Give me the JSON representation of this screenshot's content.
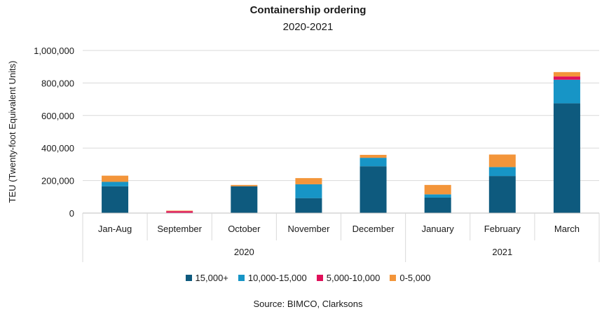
{
  "chart_data": {
    "type": "bar",
    "stacked": true,
    "title": "Containership ordering",
    "subtitle": "2020-2021",
    "ylabel": "TEU (Twenty-foot Equivalent Units)",
    "xlabel": "",
    "ylim": [
      0,
      1000000
    ],
    "yticks": [
      0,
      200000,
      400000,
      600000,
      800000,
      1000000
    ],
    "ytick_labels": [
      "0",
      "200,000",
      "400,000",
      "600,000",
      "800,000",
      "1,000,000"
    ],
    "categories": [
      "Jan-Aug",
      "September",
      "October",
      "November",
      "December",
      "January",
      "February",
      "March"
    ],
    "groups": [
      {
        "label": "2020",
        "categories": [
          "Jan-Aug",
          "September",
          "October",
          "November",
          "December"
        ]
      },
      {
        "label": "2021",
        "categories": [
          "January",
          "February",
          "March"
        ]
      }
    ],
    "series": [
      {
        "name": "15,000+",
        "color": "#0e5a7e",
        "values": [
          165000,
          0,
          165000,
          92000,
          288000,
          95000,
          228000,
          675000
        ]
      },
      {
        "name": "10,000-15,000",
        "color": "#1795c6",
        "values": [
          27000,
          0,
          0,
          85000,
          52000,
          20000,
          55000,
          145000
        ]
      },
      {
        "name": "5,000-10,000",
        "color": "#e0105a",
        "values": [
          0,
          12000,
          0,
          0,
          0,
          0,
          0,
          20000
        ]
      },
      {
        "name": "0-5,000",
        "color": "#f3953a",
        "values": [
          38000,
          3000,
          8000,
          38000,
          18000,
          58000,
          77000,
          27000
        ]
      }
    ],
    "grid": true,
    "legend_position": "bottom",
    "source": "Source: BIMCO, Clarksons"
  }
}
